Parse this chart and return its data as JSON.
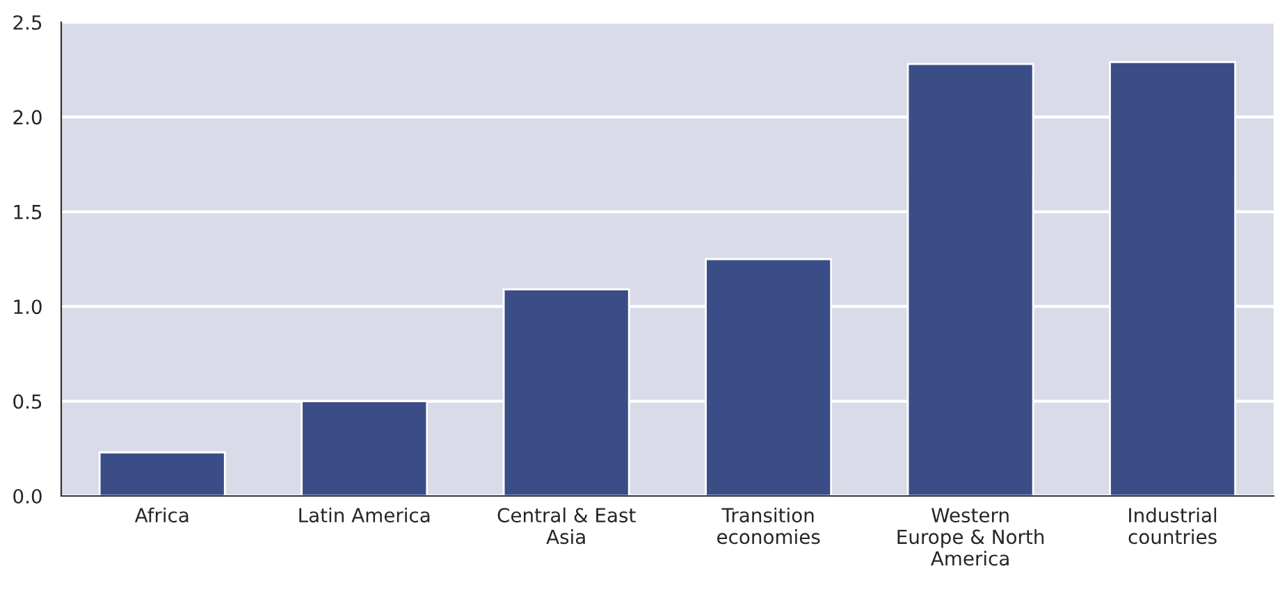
{
  "chart_data": {
    "type": "bar",
    "categories": [
      "Africa",
      "Latin America",
      "Central & East\nAsia",
      "Transition\neconomies",
      "Western\nEurope & North\nAmerica",
      "Industrial\ncountries"
    ],
    "values": [
      0.23,
      0.5,
      1.09,
      1.25,
      2.28,
      2.29
    ],
    "color": "#3a4d87",
    "ylim": [
      0,
      2.5
    ],
    "yticks": [
      {
        "value": 0,
        "label": "0.0"
      },
      {
        "value": 0.5,
        "label": "0.5"
      },
      {
        "value": 1.0,
        "label": "1.0"
      },
      {
        "value": 1.5,
        "label": "1.5"
      },
      {
        "value": 2.0,
        "label": "2.0"
      },
      {
        "value": 2.5,
        "label": "2.5"
      }
    ],
    "grid": "y"
  }
}
